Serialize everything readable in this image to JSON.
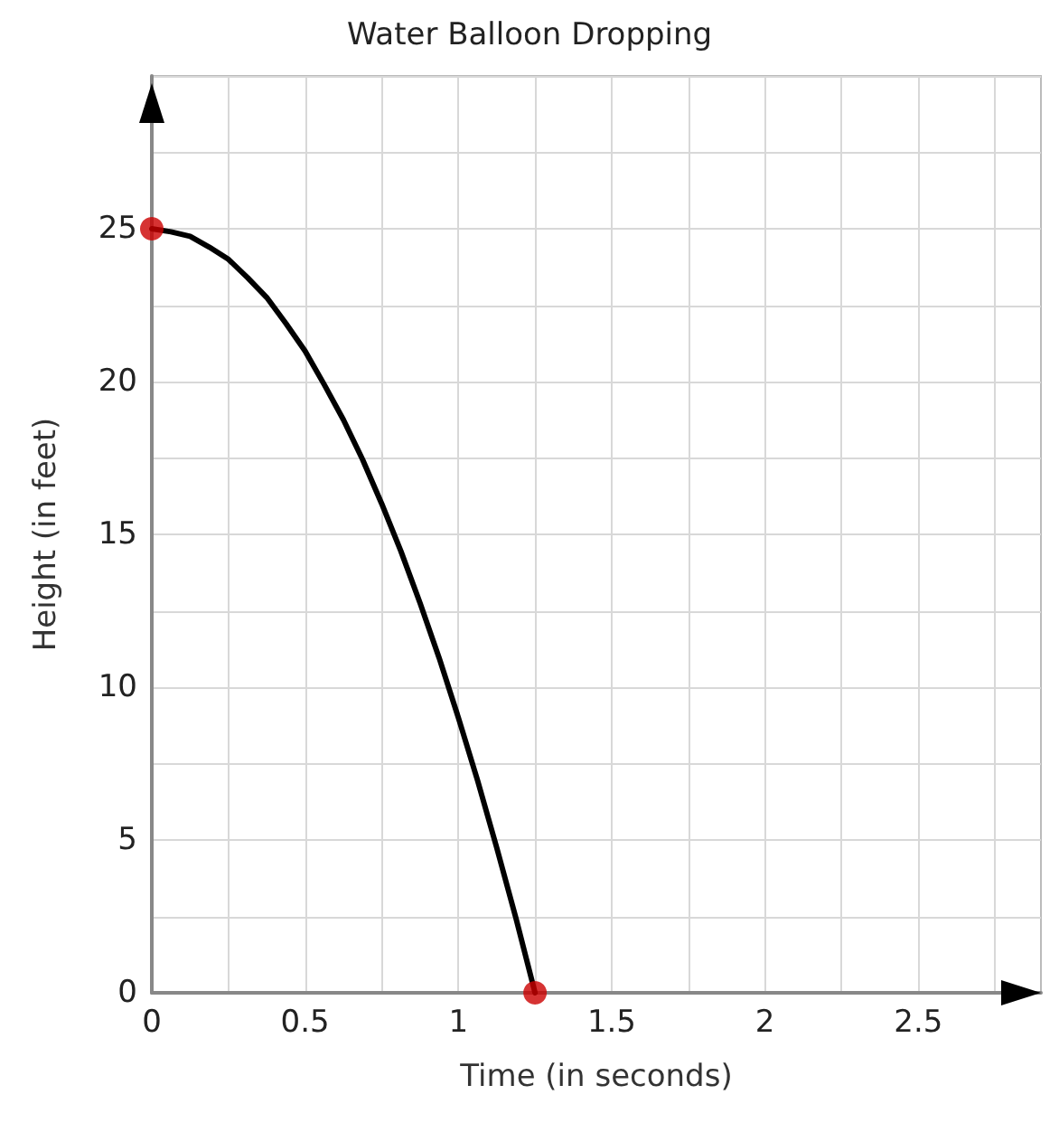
{
  "chart_data": {
    "type": "line",
    "title": "Water Balloon Dropping",
    "xlabel": "Time (in seconds)",
    "ylabel": "Height (in feet)",
    "series": [
      {
        "color": "#000000",
        "marker": "none",
        "x": [
          0,
          0.0625,
          0.125,
          0.1875,
          0.25,
          0.3125,
          0.375,
          0.4375,
          0.5,
          0.5625,
          0.625,
          0.6875,
          0.75,
          0.8125,
          0.875,
          0.9375,
          1,
          1.0625,
          1.125,
          1.1875,
          1.25
        ],
        "values": [
          25,
          24.9,
          24.75,
          24.4,
          24,
          23.4,
          22.75,
          21.9,
          21,
          19.9,
          18.75,
          17.45,
          16,
          14.45,
          12.75,
          10.95,
          9,
          6.95,
          4.75,
          2.45,
          0
        ]
      },
      {
        "type": "scatter",
        "color": "#cc0000",
        "marker": "circle",
        "x": [
          0,
          1.25
        ],
        "values": [
          25,
          0
        ]
      }
    ],
    "xlim": [
      0,
      2.9
    ],
    "ylim": [
      0,
      30
    ],
    "xticks": [
      0,
      {
        "value": 0.25,
        "label": null
      },
      0.5,
      {
        "value": 0.75,
        "label": null
      },
      1,
      {
        "value": 1.25,
        "label": null
      },
      1.5,
      {
        "value": 1.75,
        "label": null
      },
      2,
      {
        "value": 2.25,
        "label": null
      },
      2.5,
      {
        "value": 2.75,
        "label": null
      }
    ],
    "yticks": [
      0,
      {
        "value": 2.5,
        "label": null
      },
      5,
      {
        "value": 7.5,
        "label": null
      },
      10,
      {
        "value": 12.5,
        "label": null
      },
      15,
      {
        "value": 17.5,
        "label": null
      },
      20,
      {
        "value": 22.5,
        "label": null
      },
      25,
      {
        "value": 27.5,
        "label": null
      },
      {
        "value": 30,
        "label": null
      }
    ],
    "grid": true
  }
}
